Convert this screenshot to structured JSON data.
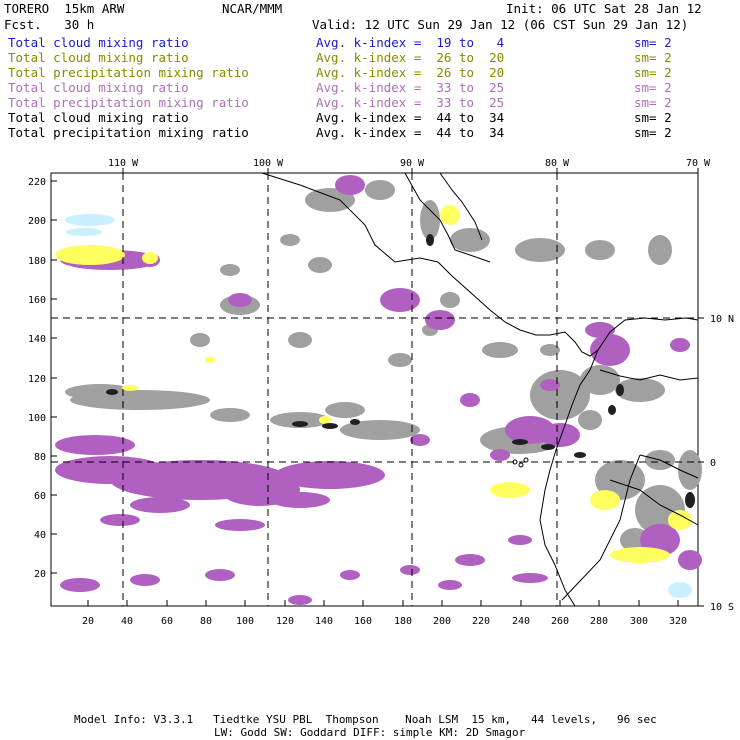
{
  "header": {
    "model": "TORERO  15km ARW",
    "org": "NCAR/MMM",
    "init": "Init: 06 UTC Sat 28 Jan 12",
    "fcst": "Fcst.   30 h",
    "valid": "Valid: 12 UTC Sun 29 Jan 12 (06 CST Sun 29 Jan 12)"
  },
  "legend": [
    {
      "field": "Total cloud mixing ratio",
      "index": "Avg. k-index =  19 to   4",
      "sm": "sm= 2",
      "color": "#1a1ac8"
    },
    {
      "field": "Total cloud mixing ratio",
      "index": "Avg. k-index =  26 to  20",
      "sm": "sm= 2",
      "color": "#8a8a00"
    },
    {
      "field": "Total precipitation mixing ratio",
      "index": "Avg. k-index =  26 to  20",
      "sm": "sm= 2",
      "color": "#8a8a00"
    },
    {
      "field": "Total cloud mixing ratio",
      "index": "Avg. k-index =  33 to  25",
      "sm": "sm= 2",
      "color": "#b070b8"
    },
    {
      "field": "Total precipitation mixing ratio",
      "index": "Avg. k-index =  33 to  25",
      "sm": "sm= 2",
      "color": "#b070b8"
    },
    {
      "field": "Total cloud mixing ratio",
      "index": "Avg. k-index =  44 to  34",
      "sm": "sm= 2",
      "color": "#000000"
    },
    {
      "field": "Total precipitation mixing ratio",
      "index": "Avg. k-index =  44 to  34",
      "sm": "sm= 2",
      "color": "#000000"
    }
  ],
  "map": {
    "top_labels": [
      "110 W",
      "100 W",
      "90 W",
      "80 W",
      "70 W"
    ],
    "right_labels": [
      "10 N",
      "0",
      "10 S"
    ],
    "left_ticks": [
      "220",
      "200",
      "180",
      "160",
      "140",
      "120",
      "100",
      "80",
      "60",
      "40",
      "20"
    ],
    "bottom_ticks": [
      "20",
      "40",
      "60",
      "80",
      "100",
      "120",
      "140",
      "160",
      "180",
      "200",
      "220",
      "240",
      "260",
      "280",
      "300",
      "320"
    ],
    "colors": {
      "gray": "#a0a0a0",
      "purple": "#b060c0",
      "yellow": "#ffff60",
      "cyan": "#c8f0ff",
      "black": "#202020"
    }
  },
  "footer": {
    "line1": "Model Info: V3.3.1   Tiedtke YSU PBL  Thompson    Noah LSM  15 km,   44 levels,   96 sec",
    "line2": "LW: Godd SW: Goddard DIFF: simple KM: 2D Smagor"
  }
}
